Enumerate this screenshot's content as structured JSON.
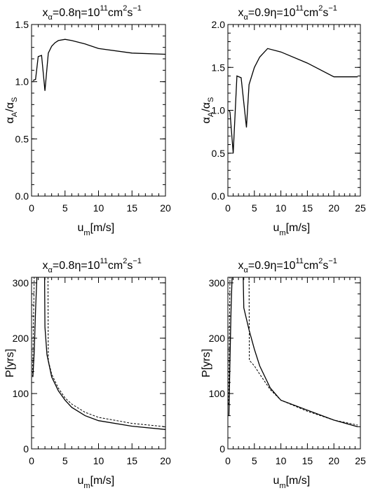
{
  "chart_data": [
    {
      "type": "line",
      "title_parts": {
        "x": "x",
        "x_sub": "α",
        "x_val": "=0.8",
        "eta": "η",
        "eta_val": "=10",
        "eta_exp": "11",
        "unit": "cm",
        "unit_exp": "2",
        "unit2": "s",
        "unit2_exp": "−1"
      },
      "xlabel": {
        "main": "u",
        "sub": "m",
        "unit": "[m/s]"
      },
      "ylabel": {
        "main": "α",
        "sub": "A",
        "slash": "/",
        "main2": "α",
        "sub2": "S"
      },
      "xlim": [
        0,
        20
      ],
      "ylim": [
        0,
        1.5
      ],
      "xticks": [
        "0",
        "5",
        "10",
        "15",
        "20"
      ],
      "yticks": [
        "0.0",
        "0.5",
        "1.0",
        "1.5"
      ],
      "series": [
        {
          "style": "solid",
          "points": [
            [
              0.2,
              1.01
            ],
            [
              0.6,
              1.02
            ],
            [
              1.0,
              1.22
            ],
            [
              1.5,
              1.23
            ],
            [
              2.0,
              0.92
            ],
            [
              2.5,
              1.25
            ],
            [
              3.0,
              1.31
            ],
            [
              3.5,
              1.34
            ],
            [
              4.0,
              1.36
            ],
            [
              5.0,
              1.37
            ],
            [
              6.0,
              1.36
            ],
            [
              8.0,
              1.33
            ],
            [
              10.0,
              1.29
            ],
            [
              15.0,
              1.25
            ],
            [
              20.0,
              1.24
            ]
          ]
        }
      ]
    },
    {
      "type": "line",
      "title_parts": {
        "x": "x",
        "x_sub": "α",
        "x_val": "=0.9",
        "eta": "η",
        "eta_val": "=10",
        "eta_exp": "11",
        "unit": "cm",
        "unit_exp": "2",
        "unit2": "s",
        "unit2_exp": "−1"
      },
      "xlabel": {
        "main": "u",
        "sub": "m",
        "unit": "[m/s]"
      },
      "ylabel": {
        "main": "α",
        "sub": "A",
        "slash": "/",
        "main2": "α",
        "sub2": "S"
      },
      "xlim": [
        0,
        25
      ],
      "ylim": [
        0,
        2.0
      ],
      "xticks": [
        "0",
        "5",
        "10",
        "15",
        "20",
        "25"
      ],
      "yticks": [
        "0.0",
        "0.5",
        "1.0",
        "1.5",
        "2.0"
      ],
      "series": [
        {
          "style": "solid",
          "points": [
            [
              0.2,
              1.0
            ],
            [
              0.4,
              0.98
            ],
            [
              1.0,
              0.5
            ],
            [
              1.7,
              1.4
            ],
            [
              2.5,
              1.38
            ],
            [
              3.5,
              0.8
            ],
            [
              4.0,
              1.3
            ],
            [
              5.0,
              1.5
            ],
            [
              6.0,
              1.62
            ],
            [
              7.5,
              1.72
            ],
            [
              10.0,
              1.68
            ],
            [
              15.0,
              1.55
            ],
            [
              20.0,
              1.39
            ],
            [
              24.5,
              1.39
            ]
          ]
        }
      ]
    },
    {
      "type": "line",
      "title_parts": {
        "x": "x",
        "x_sub": "α",
        "x_val": "=0.8",
        "eta": "η",
        "eta_val": "=10",
        "eta_exp": "11",
        "unit": "cm",
        "unit_exp": "2",
        "unit2": "s",
        "unit2_exp": "−1"
      },
      "xlabel": {
        "main": "u",
        "sub": "m",
        "unit": "[m/s]"
      },
      "ylabel": {
        "text": "P[yrs]"
      },
      "xlim": [
        0,
        20
      ],
      "ylim": [
        0,
        310
      ],
      "xticks": [
        "0",
        "5",
        "10",
        "15",
        "20"
      ],
      "yticks": [
        "0",
        "100",
        "200",
        "300"
      ],
      "series": [
        {
          "style": "solid",
          "points": [
            [
              0.2,
              130
            ],
            [
              0.4,
              175
            ],
            [
              0.6,
              250
            ],
            [
              0.8,
              310
            ]
          ]
        },
        {
          "style": "solid",
          "points": [
            [
              1.95,
              310
            ],
            [
              2.0,
              220
            ],
            [
              2.3,
              170
            ],
            [
              3,
              130
            ],
            [
              4,
              105
            ],
            [
              5,
              88
            ],
            [
              6,
              75
            ],
            [
              8,
              60
            ],
            [
              10,
              51
            ],
            [
              15,
              41
            ],
            [
              20,
              35
            ]
          ]
        },
        {
          "style": "dashed",
          "points": [
            [
              0.15,
              130
            ],
            [
              0.4,
              310
            ]
          ]
        },
        {
          "style": "dashed",
          "points": [
            [
              2.45,
              310
            ],
            [
              2.5,
              160
            ],
            [
              3,
              135
            ],
            [
              4,
              110
            ],
            [
              5,
              92
            ],
            [
              6,
              81
            ],
            [
              8,
              66
            ],
            [
              10,
              57
            ],
            [
              15,
              46
            ],
            [
              20,
              40
            ]
          ]
        }
      ]
    },
    {
      "type": "line",
      "title_parts": {
        "x": "x",
        "x_sub": "α",
        "x_val": "=0.9",
        "eta": "η",
        "eta_val": "=10",
        "eta_exp": "11",
        "unit": "cm",
        "unit_exp": "2",
        "unit2": "s",
        "unit2_exp": "−1"
      },
      "xlabel": {
        "main": "u",
        "sub": "m",
        "unit": "[m/s]"
      },
      "ylabel": {
        "text": "P[yrs]"
      },
      "xlim": [
        0,
        25
      ],
      "ylim": [
        0,
        310
      ],
      "xticks": [
        "0",
        "5",
        "10",
        "15",
        "20",
        "25"
      ],
      "yticks": [
        "0",
        "100",
        "200",
        "300"
      ],
      "series": [
        {
          "style": "solid",
          "points": [
            [
              0.2,
              60
            ],
            [
              0.4,
              160
            ],
            [
              0.6,
              250
            ],
            [
              0.8,
              310
            ]
          ]
        },
        {
          "style": "solid",
          "points": [
            [
              2.9,
              310
            ],
            [
              3.0,
              255
            ],
            [
              4,
              215
            ],
            [
              5,
              180
            ],
            [
              6,
              150
            ],
            [
              8,
              110
            ],
            [
              10,
              88
            ],
            [
              15,
              70
            ],
            [
              20,
              52
            ],
            [
              24.5,
              40
            ]
          ]
        },
        {
          "style": "dashed",
          "points": [
            [
              0.15,
              80
            ],
            [
              0.4,
              310
            ]
          ]
        },
        {
          "style": "dashed",
          "points": [
            [
              4.0,
              310
            ],
            [
              4.05,
              160
            ],
            [
              5,
              150
            ],
            [
              6,
              135
            ],
            [
              8,
              107
            ],
            [
              10,
              88
            ],
            [
              15,
              68
            ],
            [
              20,
              52
            ],
            [
              24.5,
              43
            ]
          ]
        }
      ]
    }
  ]
}
